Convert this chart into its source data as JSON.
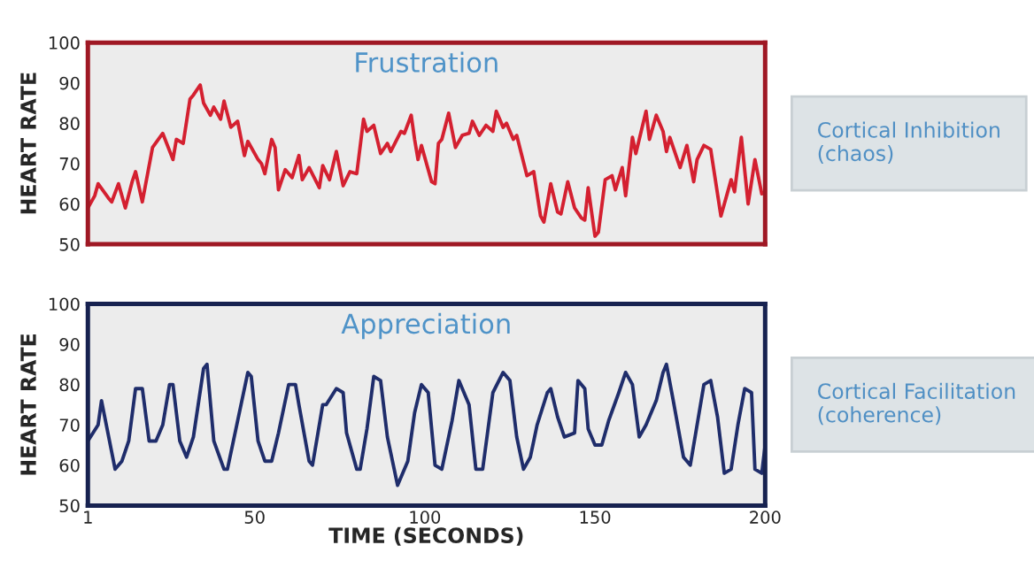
{
  "chart_data": [
    {
      "type": "line",
      "title": "Frustration",
      "ylabel": "HEART RATE",
      "xlim": [
        1,
        200
      ],
      "ylim": [
        50,
        100
      ],
      "yticks": [
        50,
        60,
        70,
        80,
        90,
        100
      ],
      "tick_labels": "y",
      "grid": false,
      "legend": false,
      "line_style": "solid",
      "marker": "none",
      "annotations": [
        "Cortical Inhibition (chaos)"
      ],
      "series": [
        {
          "color": "#d42030",
          "x": [
            1,
            3,
            4,
            7,
            8,
            10,
            12,
            14,
            15,
            17,
            20,
            23,
            26,
            27,
            29,
            31,
            32,
            34,
            35,
            37,
            38,
            40,
            41,
            43,
            45,
            47,
            48,
            51,
            52,
            53,
            55,
            56,
            57,
            59,
            61,
            63,
            64,
            66,
            69,
            70,
            72,
            74,
            76,
            78,
            80,
            82,
            83,
            85,
            87,
            89,
            90,
            93,
            94,
            96,
            97,
            98,
            99,
            102,
            103,
            104,
            105,
            107,
            109,
            111,
            113,
            114,
            116,
            118,
            120,
            121,
            123,
            124,
            126,
            127,
            130,
            132,
            134,
            135,
            137,
            139,
            140,
            142,
            144,
            146,
            147,
            148,
            150,
            151,
            153,
            155,
            156,
            158,
            159,
            161,
            162,
            165,
            166,
            168,
            170,
            171,
            172,
            175,
            177,
            179,
            180,
            182,
            184,
            187,
            190,
            191,
            193,
            195,
            197,
            199,
            200
          ],
          "values": [
            59,
            62,
            65,
            61.5,
            60.5,
            65,
            59,
            65.5,
            68,
            60.5,
            74,
            77.5,
            71,
            76,
            75,
            86,
            87,
            89.5,
            85,
            82,
            84,
            81,
            85.5,
            79,
            80.5,
            72,
            75.5,
            71,
            70,
            67.5,
            76,
            74,
            63.5,
            68.5,
            66.5,
            72,
            66,
            69,
            64,
            69.5,
            66,
            73,
            64.5,
            68,
            67.5,
            81,
            78,
            79.5,
            72.5,
            75,
            73,
            78,
            77.5,
            82,
            76,
            71,
            74.5,
            65.5,
            65,
            75,
            76,
            82.5,
            74,
            77,
            77.5,
            80.5,
            77,
            79.5,
            78,
            83,
            79,
            80,
            76,
            77,
            67,
            68,
            57,
            55.5,
            65,
            58,
            57.5,
            65.5,
            59,
            56.5,
            56,
            64,
            52,
            53,
            66,
            67,
            63.5,
            69,
            62,
            76.5,
            72.5,
            83,
            76,
            82,
            78,
            73,
            76.5,
            69,
            74.5,
            65.5,
            71,
            74.5,
            73.5,
            57,
            66,
            63,
            76.5,
            60,
            71,
            62.5,
            63
          ]
        }
      ]
    },
    {
      "type": "line",
      "title": "Appreciation",
      "ylabel": "HEART RATE",
      "xlabel": "TIME (SECONDS)",
      "xlim": [
        1,
        200
      ],
      "xticks": [
        1,
        50,
        100,
        150,
        200
      ],
      "ylim": [
        50,
        100
      ],
      "yticks": [
        50,
        60,
        70,
        80,
        90,
        100
      ],
      "grid": false,
      "legend": false,
      "line_style": "solid",
      "marker": "none",
      "annotations": [
        "Cortical Facilitation (coherence)"
      ],
      "series": [
        {
          "color": "#1f2d6b",
          "x": [
            1,
            4,
            5,
            9,
            11,
            13,
            15,
            17,
            19,
            21,
            23,
            25,
            26,
            28,
            30,
            32,
            35,
            36,
            38,
            41,
            42,
            44,
            48,
            49,
            51,
            53,
            55,
            57,
            60,
            62,
            63,
            66,
            67,
            70,
            71,
            74,
            76,
            77,
            80,
            81,
            83,
            85,
            87,
            89,
            92,
            95,
            97,
            99,
            101,
            103,
            105,
            108,
            110,
            113,
            115,
            117,
            120,
            123,
            125,
            127,
            129,
            131,
            133,
            136,
            137,
            139,
            141,
            144,
            145,
            147,
            148,
            150,
            152,
            154,
            157,
            159,
            161,
            163,
            165,
            168,
            170,
            171,
            173,
            176,
            178,
            180,
            182,
            184,
            186,
            188,
            190,
            192,
            194,
            196,
            197,
            199,
            200
          ],
          "values": [
            66,
            70,
            76,
            59,
            61,
            66,
            79,
            79,
            66,
            66,
            70,
            80,
            80,
            66,
            62,
            67,
            84,
            85,
            66,
            59,
            59,
            67,
            83,
            82,
            66,
            61,
            61,
            68,
            80,
            80,
            75,
            61,
            60,
            75,
            75,
            79,
            78,
            68,
            59,
            59,
            69,
            82,
            81,
            67,
            55,
            61,
            73,
            80,
            78,
            60,
            59,
            71,
            81,
            75,
            59,
            59,
            78,
            83,
            81,
            67,
            59,
            62,
            70,
            78,
            79,
            72,
            67,
            68,
            81,
            79,
            69,
            65,
            65,
            71,
            78,
            83,
            80,
            67,
            70,
            76,
            83,
            85,
            76,
            62,
            60,
            70,
            80,
            81,
            72,
            58,
            59,
            70,
            79,
            78,
            59,
            58,
            65
          ]
        }
      ]
    }
  ]
}
